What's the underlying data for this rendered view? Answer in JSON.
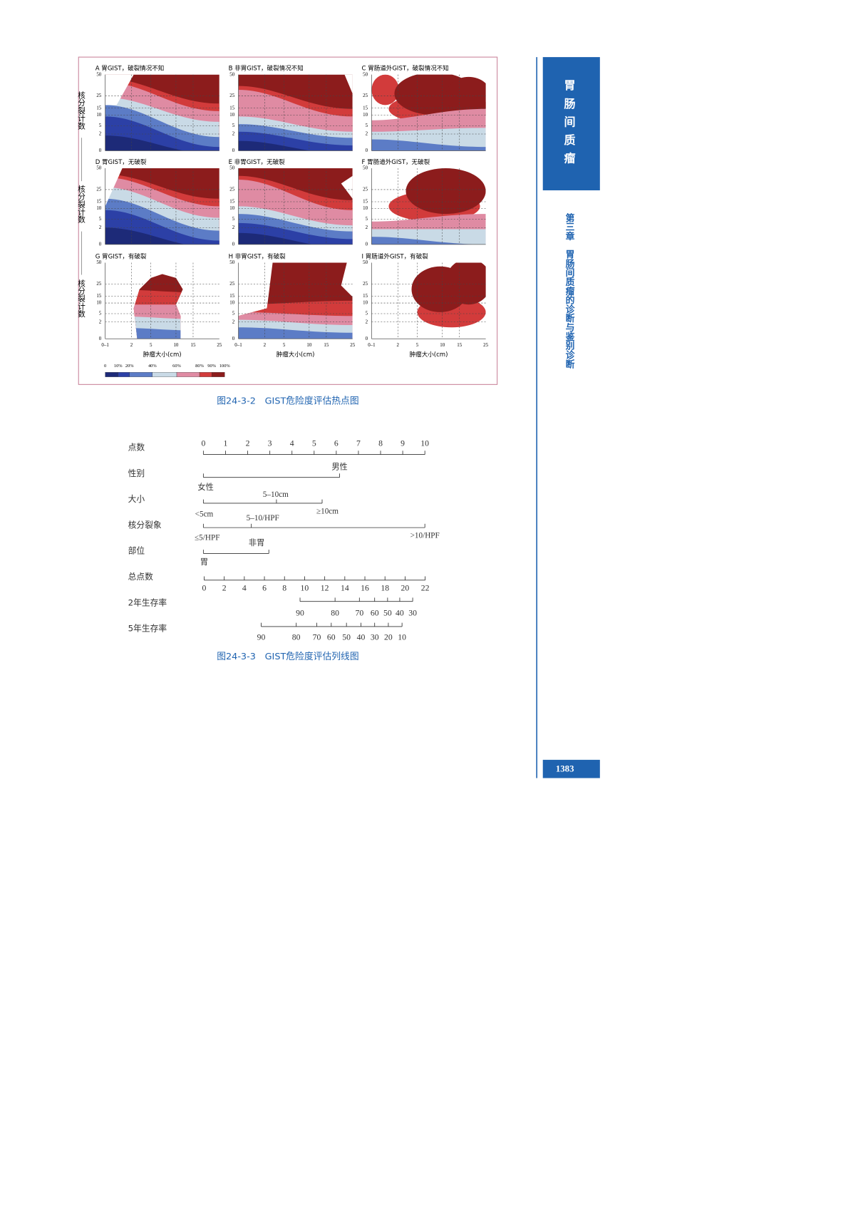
{
  "figure1": {
    "panels": [
      "A 胃GIST，破裂情况不知",
      "B 非胃GIST，破裂情况不知",
      "C 胃肠道外GIST，破裂情况不知",
      "D 胃GIST，无破裂",
      "E 非胃GIST，无破裂",
      "F 胃肠道外GIST，无破裂",
      "G 胃GIST，有破裂",
      "H 非胃GIST，有破裂",
      "I 胃肠道外GIST，有破裂"
    ],
    "y_axis_label": "核分裂计数",
    "y_ticks": [
      "50",
      "25",
      "15",
      "10",
      "5",
      "2",
      "0"
    ],
    "x_ticks": [
      "0–1",
      "2",
      "5",
      "10",
      "15",
      "25"
    ],
    "x_axis_label": "肿瘤大小(cm)",
    "legend_ticks": [
      "0",
      "10%",
      "20%",
      "40%",
      "60%",
      "80%",
      "90%",
      "100%"
    ],
    "caption": "图24-3-2　GIST危险度评估热点图"
  },
  "figure2": {
    "rows": [
      {
        "label": "点数",
        "ticks": [
          "0",
          "1",
          "2",
          "3",
          "4",
          "5",
          "6",
          "7",
          "8",
          "9",
          "10"
        ]
      },
      {
        "label": "性别",
        "levels": [
          "男性",
          "女性"
        ]
      },
      {
        "label": "大小",
        "levels": [
          "5–10cm",
          "<5cm",
          "≥10cm"
        ]
      },
      {
        "label": "核分裂象",
        "levels": [
          "5–10/HPF",
          "≤5/HPF",
          ">10/HPF"
        ]
      },
      {
        "label": "部位",
        "levels": [
          "非胃",
          "胃"
        ]
      },
      {
        "label": "总点数",
        "ticks": [
          "0",
          "2",
          "4",
          "6",
          "8",
          "10",
          "12",
          "14",
          "16",
          "18",
          "20",
          "22"
        ]
      },
      {
        "label": "2年生存率",
        "ticks": [
          "90",
          "80",
          "70",
          "60",
          "50",
          "40",
          "30"
        ]
      },
      {
        "label": "5年生存率",
        "ticks": [
          "90",
          "80",
          "70",
          "60",
          "50",
          "40",
          "30",
          "20",
          "10"
        ]
      }
    ],
    "caption": "图24-3-3　GIST危险度评估列线图"
  },
  "sidebar": {
    "section": "胃肠间质瘤",
    "chapter": "第三章　胃肠间质瘤的诊断与鉴别诊断"
  },
  "page_number": "1383"
}
